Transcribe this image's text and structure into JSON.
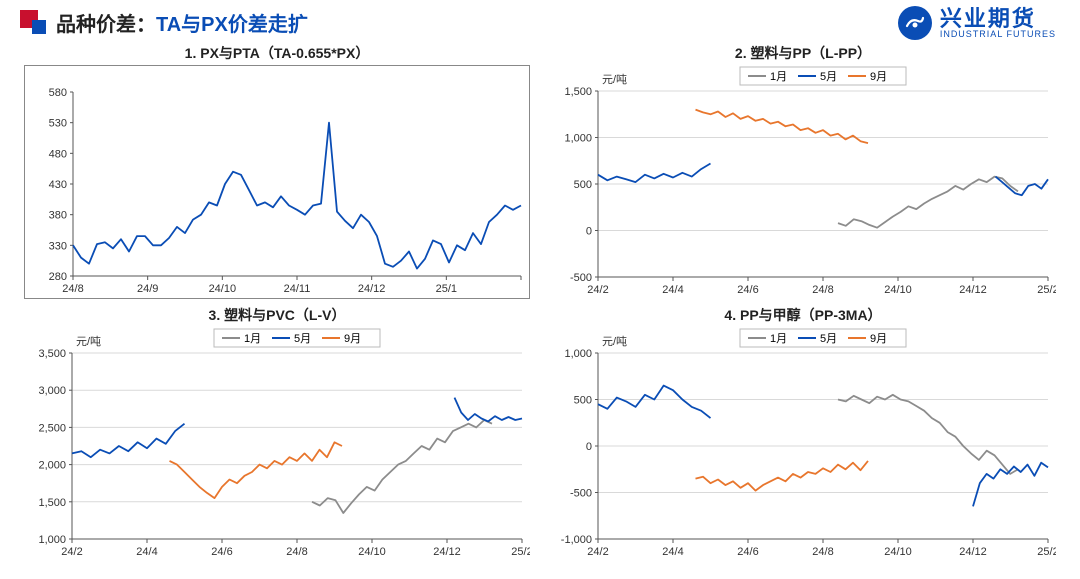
{
  "header": {
    "label_black": "品种价差：",
    "label_blue": "TA与PX价差走扩"
  },
  "logo": {
    "cn": "兴业期货",
    "en": "INDUSTRIAL FUTURES"
  },
  "colors": {
    "blue": "#0a4db5",
    "orange": "#e8762d",
    "gray": "#8c8c8c",
    "axis": "#555555",
    "grid": "#d9d9d9"
  },
  "legend_common": {
    "s1": "1月",
    "s5": "5月",
    "s9": "9月"
  },
  "charts": [
    {
      "id": "c1",
      "title": "1. PX与PTA（TA-0.655*PX）",
      "bordered": true,
      "ylabel": "",
      "ylim": [
        280,
        580
      ],
      "ytick_step": 50,
      "x_labels": [
        "24/8",
        "24/9",
        "24/10",
        "24/11",
        "24/12",
        "25/1",
        ""
      ],
      "x_count": 7,
      "series": [
        {
          "color_key": "blue",
          "label": null,
          "x0": 0,
          "x1": 6,
          "y": [
            330,
            310,
            300,
            332,
            335,
            325,
            340,
            320,
            345,
            345,
            330,
            330,
            342,
            360,
            350,
            372,
            380,
            400,
            395,
            430,
            450,
            445,
            420,
            395,
            400,
            392,
            410,
            395,
            388,
            380,
            395,
            398,
            530,
            385,
            370,
            358,
            380,
            368,
            345,
            300,
            295,
            305,
            320,
            292,
            308,
            338,
            332,
            302,
            330,
            322,
            350,
            332,
            368,
            380,
            395,
            388,
            395
          ]
        }
      ],
      "legend": false
    },
    {
      "id": "c2",
      "title": "2. 塑料与PP（L-PP）",
      "bordered": false,
      "ylabel": "元/吨",
      "ylim": [
        -500,
        1500
      ],
      "ytick_step": 500,
      "x_labels": [
        "24/2",
        "24/4",
        "24/6",
        "24/8",
        "24/10",
        "24/12",
        "25/2"
      ],
      "x_count": 7,
      "series": [
        {
          "color_key": "gray",
          "label_key": "s1",
          "x0": 3.2,
          "x1": 5.6,
          "y": [
            80,
            50,
            120,
            100,
            60,
            30,
            90,
            150,
            200,
            260,
            230,
            290,
            340,
            380,
            420,
            480,
            440,
            500,
            550,
            520,
            580,
            560,
            480,
            420
          ]
        },
        {
          "color_key": "blue",
          "label_key": "s5",
          "x0": 0,
          "x1": 1.5,
          "y": [
            600,
            540,
            580,
            550,
            520,
            600,
            560,
            610,
            570,
            620,
            580,
            660,
            720
          ]
        },
        {
          "color_key": "blue",
          "label_key": null,
          "x0": 5.3,
          "x1": 6,
          "y": [
            580,
            520,
            460,
            400,
            380,
            480,
            500,
            450,
            550
          ]
        },
        {
          "color_key": "orange",
          "label_key": "s9",
          "x0": 1.3,
          "x1": 3.6,
          "y": [
            1300,
            1270,
            1250,
            1280,
            1220,
            1260,
            1200,
            1230,
            1180,
            1200,
            1150,
            1170,
            1120,
            1140,
            1080,
            1100,
            1050,
            1080,
            1020,
            1040,
            980,
            1020,
            960,
            940
          ]
        }
      ],
      "legend": true
    },
    {
      "id": "c3",
      "title": "3. 塑料与PVC（L-V）",
      "bordered": false,
      "ylabel": "元/吨",
      "ylim": [
        1000,
        3500
      ],
      "ytick_step": 500,
      "x_labels": [
        "24/2",
        "24/4",
        "24/6",
        "24/8",
        "24/10",
        "24/12",
        "25/2"
      ],
      "x_count": 7,
      "series": [
        {
          "color_key": "gray",
          "label_key": "s1",
          "x0": 3.2,
          "x1": 5.6,
          "y": [
            1500,
            1450,
            1550,
            1520,
            1350,
            1480,
            1600,
            1700,
            1650,
            1800,
            1900,
            2000,
            2050,
            2150,
            2250,
            2200,
            2350,
            2300,
            2450,
            2500,
            2550,
            2500,
            2600,
            2550
          ]
        },
        {
          "color_key": "blue",
          "label_key": "s5",
          "x0": 0,
          "x1": 1.5,
          "y": [
            2150,
            2180,
            2100,
            2200,
            2150,
            2250,
            2180,
            2300,
            2220,
            2350,
            2280,
            2450,
            2550
          ]
        },
        {
          "color_key": "blue",
          "label_key": null,
          "x0": 5.1,
          "x1": 6,
          "y": [
            2900,
            2700,
            2600,
            2680,
            2620,
            2580,
            2650,
            2600,
            2640,
            2600,
            2620
          ]
        },
        {
          "color_key": "orange",
          "label_key": "s9",
          "x0": 1.3,
          "x1": 3.6,
          "y": [
            2050,
            2000,
            1900,
            1800,
            1700,
            1620,
            1550,
            1700,
            1800,
            1750,
            1850,
            1900,
            2000,
            1950,
            2050,
            2000,
            2100,
            2050,
            2150,
            2050,
            2200,
            2100,
            2300,
            2250
          ]
        }
      ],
      "legend": true
    },
    {
      "id": "c4",
      "title": "4. PP与甲醇（PP-3MA）",
      "bordered": false,
      "ylabel": "元/吨",
      "ylim": [
        -1000,
        1000
      ],
      "ytick_step": 500,
      "x_labels": [
        "24/2",
        "24/4",
        "24/6",
        "24/8",
        "24/10",
        "24/12",
        "25/2"
      ],
      "x_count": 7,
      "series": [
        {
          "color_key": "gray",
          "label_key": "s1",
          "x0": 3.2,
          "x1": 5.6,
          "y": [
            500,
            480,
            540,
            500,
            460,
            530,
            500,
            550,
            500,
            480,
            430,
            380,
            300,
            250,
            150,
            100,
            0,
            -80,
            -150,
            -50,
            -100,
            -200,
            -300,
            -250
          ]
        },
        {
          "color_key": "blue",
          "label_key": "s5",
          "x0": 0,
          "x1": 1.5,
          "y": [
            450,
            400,
            520,
            480,
            420,
            550,
            500,
            650,
            600,
            500,
            420,
            380,
            300
          ]
        },
        {
          "color_key": "blue",
          "label_key": null,
          "x0": 5.0,
          "x1": 6,
          "y": [
            -650,
            -400,
            -300,
            -350,
            -250,
            -300,
            -220,
            -280,
            -200,
            -320,
            -180,
            -230
          ]
        },
        {
          "color_key": "orange",
          "label_key": "s9",
          "x0": 1.3,
          "x1": 3.6,
          "y": [
            -350,
            -330,
            -400,
            -360,
            -420,
            -380,
            -450,
            -400,
            -480,
            -420,
            -380,
            -340,
            -380,
            -300,
            -340,
            -280,
            -300,
            -240,
            -280,
            -200,
            -250,
            -180,
            -260,
            -160
          ]
        }
      ],
      "legend": true
    }
  ]
}
